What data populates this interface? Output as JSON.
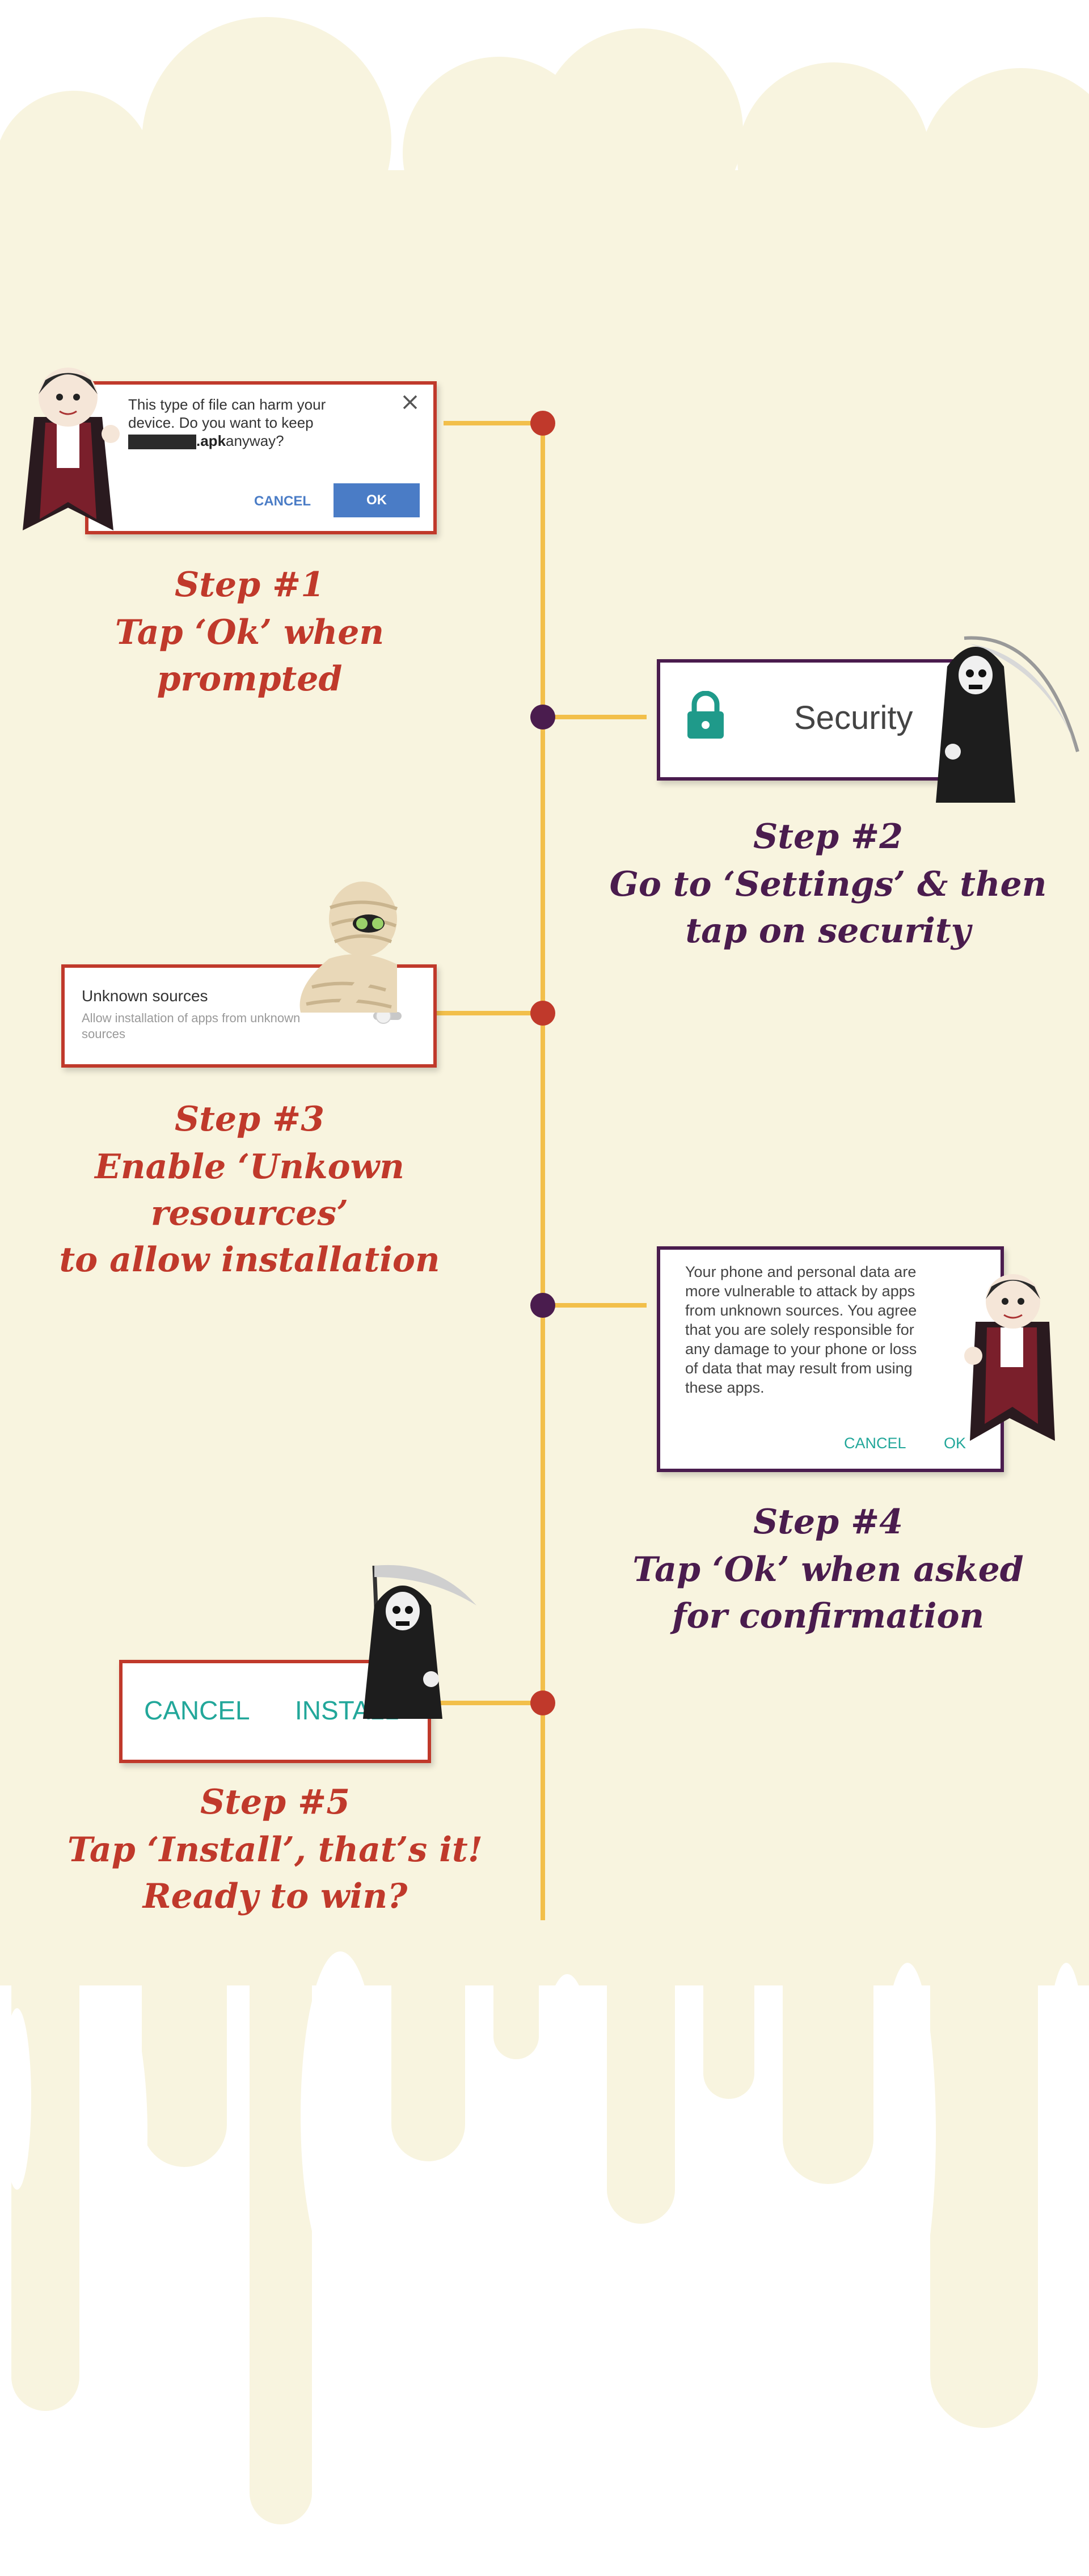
{
  "colors": {
    "cream": "#f8f4df",
    "timeline": "#f2bf4a",
    "red": "#c0392b",
    "purple": "#4a1c4e",
    "teal": "#22a79a",
    "dialog_blue": "#4a7cc6"
  },
  "steps": [
    {
      "title": "Step #1",
      "desc_lines": [
        "Tap ‘Ok’ when prompted"
      ],
      "card": {
        "message_line1": "This type of file can harm your",
        "message_line2": "device. Do you want to keep",
        "filename_suffix": ".apk",
        "message_end": " anyway?",
        "cancel_label": "CANCEL",
        "ok_label": "OK",
        "close_icon": "close-icon"
      },
      "character": "vampire-icon"
    },
    {
      "title": "Step #2",
      "desc_lines": [
        "Go to ‘Settings’ & then",
        "tap on security"
      ],
      "card": {
        "label": "Security",
        "icon": "lock-icon"
      },
      "character": "grim-reaper-icon"
    },
    {
      "title": "Step #3",
      "desc_lines": [
        "Enable ‘Unkown resources’",
        "to allow installation"
      ],
      "card": {
        "title": "Unknown sources",
        "sub_line1": "Allow installation of apps from unknown",
        "sub_line2": "sources",
        "toggle_icon": "toggle-off-icon"
      },
      "character": "mummy-icon"
    },
    {
      "title": "Step #4",
      "desc_lines": [
        "Tap ‘Ok’ when asked",
        "for confirmation"
      ],
      "card": {
        "lines": [
          "Your phone and personal data are",
          "more vulnerable to attack by apps",
          "from unknown sources. You agree",
          "that you are solely responsible for",
          "any damage to your phone or loss",
          "of data that may result from using",
          "these apps."
        ],
        "cancel_label": "CANCEL",
        "ok_label": "OK"
      },
      "character": "vampire-icon"
    },
    {
      "title": "Step #5",
      "desc_lines": [
        "Tap ‘Install’, that’s it!",
        "Ready to win?"
      ],
      "card": {
        "cancel_label": "CANCEL",
        "install_label": "INSTALL"
      },
      "character": "grim-reaper-icon"
    }
  ]
}
